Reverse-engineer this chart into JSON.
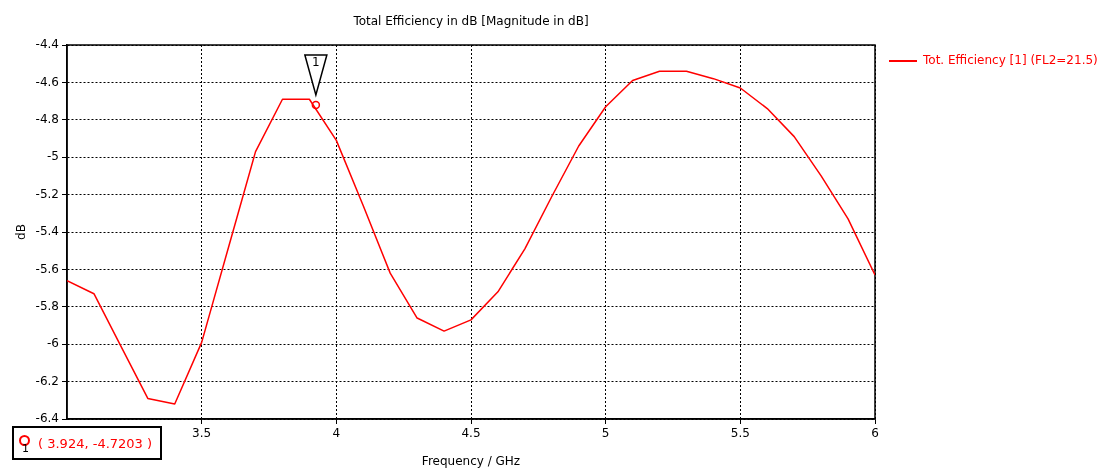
{
  "chart_data": {
    "type": "line",
    "title": "Total Efficiency in dB [Magnitude in dB]",
    "xlabel": "Frequency / GHz",
    "ylabel": "dB",
    "xlim": [
      3,
      6
    ],
    "xticks": [
      3.5,
      4,
      4.5,
      5,
      5.5,
      6
    ],
    "ylim": [
      -6.4,
      -4.4
    ],
    "yticks": [
      -6.4,
      -6.2,
      -6,
      -5.8,
      -5.6,
      -5.4,
      -5.2,
      -5,
      -4.8,
      -4.6,
      -4.4
    ],
    "grid": true,
    "legend": "right",
    "marker": "none",
    "line_style": "solid",
    "series": [
      {
        "name": "Tot. Efficiency [1] (FL2=21.5)",
        "color": "#ff0000",
        "x": [
          3.0,
          3.1,
          3.2,
          3.3,
          3.4,
          3.5,
          3.6,
          3.7,
          3.8,
          3.9,
          4.0,
          4.1,
          4.2,
          4.3,
          4.4,
          4.5,
          4.6,
          4.7,
          4.8,
          4.9,
          5.0,
          5.1,
          5.2,
          5.3,
          5.4,
          5.5,
          5.6,
          5.7,
          5.8,
          5.9,
          6.0
        ],
        "values": [
          -5.66,
          -5.73,
          -6.01,
          -6.29,
          -6.32,
          -5.99,
          -5.48,
          -4.97,
          -4.69,
          -4.69,
          -4.91,
          -5.26,
          -5.62,
          -5.86,
          -5.93,
          -5.87,
          -5.72,
          -5.49,
          -5.21,
          -4.94,
          -4.73,
          -4.59,
          -4.54,
          -4.54,
          -4.58,
          -4.63,
          -4.74,
          -4.89,
          -5.1,
          -5.33,
          -5.63
        ]
      },
      {
        "type": "scatter",
        "marker": "circle",
        "color": "#ff0000",
        "x": [
          3.924
        ],
        "values": [
          -4.7203
        ]
      }
    ],
    "annotations": [
      "1",
      "1",
      "( 3.924, -4.7203 )"
    ]
  }
}
